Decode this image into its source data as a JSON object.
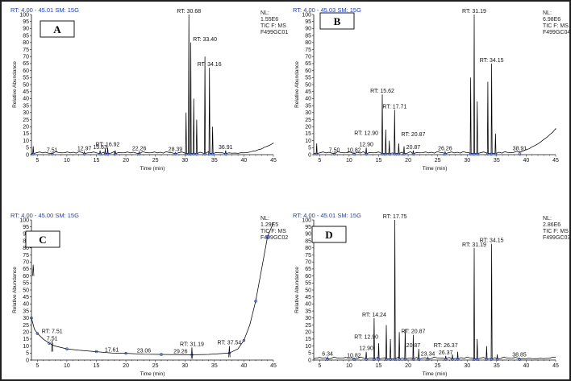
{
  "chart_data": [
    {
      "type": "line",
      "panel_label": "A",
      "header": "RT: 4.00 - 45.01   SM: 15G",
      "info": [
        "NL:",
        "1.55E6",
        "TIC F:   MS",
        "F499GC01"
      ],
      "xlabel": "Time (min)",
      "ylabel": "Relative Abundance",
      "xlim": [
        4,
        45
      ],
      "ylim": [
        0,
        100
      ],
      "x_ticks": [
        5,
        10,
        15,
        20,
        25,
        30,
        35,
        40,
        45
      ],
      "y_ticks": [
        0,
        5,
        10,
        15,
        20,
        25,
        30,
        35,
        40,
        45,
        50,
        55,
        60,
        65,
        70,
        75,
        80,
        85,
        90,
        95,
        100
      ],
      "peaks": [
        {
          "x": 4.3,
          "y": 6
        },
        {
          "x": 7.51,
          "y": 1
        },
        {
          "x": 12.97,
          "y": 2
        },
        {
          "x": 15.63,
          "y": 3
        },
        {
          "x": 16.5,
          "y": 4
        },
        {
          "x": 16.92,
          "y": 5
        },
        {
          "x": 18.2,
          "y": 3
        },
        {
          "x": 22.26,
          "y": 2
        },
        {
          "x": 28.39,
          "y": 1.5
        },
        {
          "x": 30.2,
          "y": 30
        },
        {
          "x": 30.68,
          "y": 100
        },
        {
          "x": 31.0,
          "y": 80
        },
        {
          "x": 31.5,
          "y": 40
        },
        {
          "x": 32.0,
          "y": 25
        },
        {
          "x": 33.4,
          "y": 70
        },
        {
          "x": 34.16,
          "y": 62
        },
        {
          "x": 34.7,
          "y": 20
        },
        {
          "x": 36.91,
          "y": 3
        }
      ],
      "baseline_rise": {
        "start_x": 39,
        "end_x": 45,
        "end_y": 8
      },
      "annotations": [
        {
          "label": "7.51",
          "x": 7.51,
          "y": 1
        },
        {
          "label": "12.97",
          "x": 12.97,
          "y": 2
        },
        {
          "label": "15.63",
          "x": 15.63,
          "y": 3
        },
        {
          "label": "RT: 16.92",
          "x": 16.92,
          "y": 5
        },
        {
          "label": "22.26",
          "x": 22.26,
          "y": 2
        },
        {
          "label": "28.39",
          "x": 28.39,
          "y": 1.5
        },
        {
          "label": "RT: 30.68",
          "x": 30.68,
          "y": 100
        },
        {
          "label": "RT: 33.40",
          "x": 33.4,
          "y": 80
        },
        {
          "label": "RT: 34.16",
          "x": 34.16,
          "y": 62
        },
        {
          "label": "36.91",
          "x": 36.91,
          "y": 3
        }
      ]
    },
    {
      "type": "line",
      "panel_label": "B",
      "header": "RT: 4.00 - 45.03   SM: 15G",
      "info": [
        "NL:",
        "6.98E6",
        "TIC F:   MS",
        "F499GC04"
      ],
      "xlabel": "Time (min)",
      "ylabel": "Relative Abundance",
      "xlim": [
        4,
        45
      ],
      "ylim": [
        0,
        100
      ],
      "x_ticks": [
        5,
        10,
        15,
        20,
        25,
        30,
        35,
        40,
        45
      ],
      "y_ticks": [
        0,
        5,
        10,
        15,
        20,
        25,
        30,
        35,
        40,
        45,
        50,
        55,
        60,
        65,
        70,
        75,
        80,
        85,
        90,
        95,
        100
      ],
      "peaks": [
        {
          "x": 4.5,
          "y": 8
        },
        {
          "x": 7.5,
          "y": 1
        },
        {
          "x": 10.82,
          "y": 1
        },
        {
          "x": 12.9,
          "y": 5
        },
        {
          "x": 15.62,
          "y": 43
        },
        {
          "x": 16.2,
          "y": 18
        },
        {
          "x": 16.8,
          "y": 10
        },
        {
          "x": 17.71,
          "y": 32
        },
        {
          "x": 18.4,
          "y": 8
        },
        {
          "x": 19.3,
          "y": 6
        },
        {
          "x": 20.87,
          "y": 3
        },
        {
          "x": 26.26,
          "y": 2
        },
        {
          "x": 30.6,
          "y": 55
        },
        {
          "x": 31.19,
          "y": 100
        },
        {
          "x": 31.7,
          "y": 38
        },
        {
          "x": 33.5,
          "y": 52
        },
        {
          "x": 34.15,
          "y": 65
        },
        {
          "x": 34.8,
          "y": 15
        },
        {
          "x": 38.91,
          "y": 2
        }
      ],
      "baseline_rise": {
        "start_x": 37,
        "end_x": 45,
        "end_y": 18
      },
      "annotations": [
        {
          "label": "7.50",
          "x": 7.5,
          "y": 1
        },
        {
          "label": "10.82",
          "x": 10.82,
          "y": 1
        },
        {
          "label": "RT: 12.90",
          "x": 12.9,
          "y": 13
        },
        {
          "label": "12.90",
          "x": 12.9,
          "y": 5
        },
        {
          "label": "RT: 15.62",
          "x": 15.62,
          "y": 43
        },
        {
          "label": "RT: 17.71",
          "x": 17.71,
          "y": 32
        },
        {
          "label": "RT: 20.87",
          "x": 20.87,
          "y": 12
        },
        {
          "label": "20.87",
          "x": 20.87,
          "y": 3
        },
        {
          "label": "26.26",
          "x": 26.26,
          "y": 2
        },
        {
          "label": "RT: 31.19",
          "x": 31.19,
          "y": 100
        },
        {
          "label": "RT: 34.15",
          "x": 34.15,
          "y": 65
        },
        {
          "label": "38.91",
          "x": 38.91,
          "y": 2
        }
      ]
    },
    {
      "type": "line",
      "panel_label": "C",
      "header": "RT: 4.00 - 45.00   SM: 15G",
      "info": [
        "NL:",
        "1.29E5",
        "TIC F:   MS",
        "F499GC02"
      ],
      "xlabel": "Time (min)",
      "ylabel": "Relative Abundance",
      "xlim": [
        4,
        45
      ],
      "ylim": [
        0,
        100
      ],
      "x_ticks": [
        5,
        10,
        15,
        20,
        25,
        30,
        35,
        40,
        45
      ],
      "y_ticks": [
        0,
        5,
        10,
        15,
        20,
        25,
        30,
        35,
        40,
        45,
        50,
        55,
        60,
        65,
        70,
        75,
        80,
        85,
        90,
        95,
        100
      ],
      "curve": [
        [
          4.0,
          30
        ],
        [
          4.5,
          22
        ],
        [
          5.0,
          19
        ],
        [
          6.0,
          15
        ],
        [
          7.0,
          12
        ],
        [
          8.0,
          10
        ],
        [
          10.0,
          8
        ],
        [
          12.0,
          7
        ],
        [
          15.0,
          6
        ],
        [
          17.61,
          5
        ],
        [
          20.0,
          4.8
        ],
        [
          23.06,
          4.2
        ],
        [
          26.0,
          4.0
        ],
        [
          29.26,
          3.8
        ],
        [
          31.19,
          3.8
        ],
        [
          34.0,
          4.0
        ],
        [
          37.54,
          5
        ],
        [
          39.0,
          8
        ],
        [
          40.0,
          14
        ],
        [
          41.0,
          25
        ],
        [
          42.0,
          42
        ],
        [
          43.0,
          65
        ],
        [
          44.0,
          88
        ],
        [
          45.0,
          98
        ]
      ],
      "spikes": [
        {
          "x": 4.3,
          "y": 68
        },
        {
          "x": 7.51,
          "y": 14
        },
        {
          "x": 31.19,
          "y": 9
        },
        {
          "x": 37.54,
          "y": 10
        }
      ],
      "annotations": [
        {
          "label": "RT: 7.51",
          "x": 7.51,
          "y": 18
        },
        {
          "label": "7.51",
          "x": 7.51,
          "y": 13
        },
        {
          "label": "17.61",
          "x": 17.61,
          "y": 5
        },
        {
          "label": "23.06",
          "x": 23.06,
          "y": 4.2
        },
        {
          "label": "29.26",
          "x": 29.26,
          "y": 3.8
        },
        {
          "label": "RT: 31.19",
          "x": 31.19,
          "y": 9
        },
        {
          "label": "RT: 37.54",
          "x": 37.54,
          "y": 10
        }
      ]
    },
    {
      "type": "line",
      "panel_label": "D",
      "header": "RT: 4.00 - 45.01   SM: 15G",
      "info": [
        "NL:",
        "2.86E6",
        "TIC F:   MS",
        "F499GC03"
      ],
      "xlabel": "Time (min)",
      "ylabel": "Relative Abundance",
      "xlim": [
        4,
        45
      ],
      "ylim": [
        0,
        100
      ],
      "x_ticks": [
        5,
        10,
        15,
        20,
        25,
        30,
        35,
        40,
        45
      ],
      "y_ticks": [
        0,
        5,
        10,
        15,
        20,
        25,
        30,
        35,
        40,
        45,
        50,
        55,
        60,
        65,
        70,
        75,
        80,
        85,
        90,
        95,
        100
      ],
      "peaks": [
        {
          "x": 6.34,
          "y": 2
        },
        {
          "x": 10.82,
          "y": 1
        },
        {
          "x": 12.9,
          "y": 6
        },
        {
          "x": 14.24,
          "y": 30
        },
        {
          "x": 15.0,
          "y": 12
        },
        {
          "x": 16.3,
          "y": 25
        },
        {
          "x": 17.0,
          "y": 15
        },
        {
          "x": 17.75,
          "y": 100
        },
        {
          "x": 18.5,
          "y": 20
        },
        {
          "x": 19.5,
          "y": 22
        },
        {
          "x": 20.87,
          "y": 18
        },
        {
          "x": 21.8,
          "y": 8
        },
        {
          "x": 23.34,
          "y": 2
        },
        {
          "x": 26.37,
          "y": 3
        },
        {
          "x": 27.5,
          "y": 4
        },
        {
          "x": 28.4,
          "y": 6
        },
        {
          "x": 31.19,
          "y": 80
        },
        {
          "x": 31.7,
          "y": 15
        },
        {
          "x": 33.3,
          "y": 10
        },
        {
          "x": 34.15,
          "y": 83
        },
        {
          "x": 35.1,
          "y": 4
        },
        {
          "x": 38.85,
          "y": 1.5
        }
      ],
      "baseline_rise": {
        "start_x": 43,
        "end_x": 45,
        "end_y": 2
      },
      "annotations": [
        {
          "label": "6.34",
          "x": 6.34,
          "y": 2
        },
        {
          "label": "10.82",
          "x": 10.82,
          "y": 1
        },
        {
          "label": "RT: 12.90",
          "x": 12.9,
          "y": 14
        },
        {
          "label": "12.90",
          "x": 12.9,
          "y": 6
        },
        {
          "label": "RT: 14.24",
          "x": 14.24,
          "y": 30
        },
        {
          "label": "RT: 17.75",
          "x": 17.75,
          "y": 100
        },
        {
          "label": "RT: 20.87",
          "x": 20.87,
          "y": 18
        },
        {
          "label": "20.87",
          "x": 20.87,
          "y": 8
        },
        {
          "label": "23.34",
          "x": 23.34,
          "y": 2
        },
        {
          "label": "RT: 26.37",
          "x": 26.37,
          "y": 8
        },
        {
          "label": "26.37",
          "x": 26.37,
          "y": 3
        },
        {
          "label": "RT: 31.19",
          "x": 31.19,
          "y": 80
        },
        {
          "label": "RT: 34.15",
          "x": 34.15,
          "y": 83
        },
        {
          "label": "38.85",
          "x": 38.85,
          "y": 1.5
        }
      ]
    }
  ]
}
